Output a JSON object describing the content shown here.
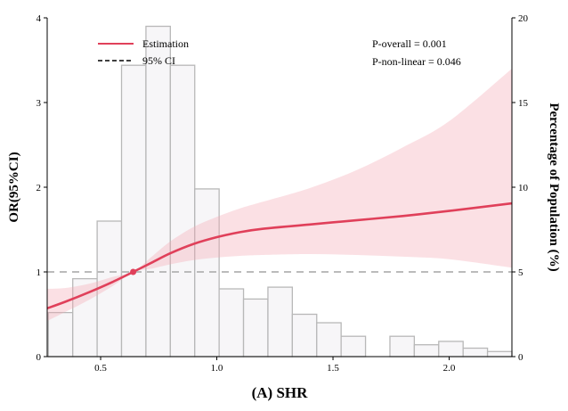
{
  "chart_data": {
    "type": "line",
    "title": "",
    "xlabel": "(A) SHR",
    "ylabel_left": "OR(95%CI)",
    "ylabel_right": "Percentage of Population (%)",
    "xlim": [
      0.27,
      2.27
    ],
    "ylim_left": [
      0,
      4
    ],
    "ylim_right": [
      0,
      20
    ],
    "x_ticks": [
      "0.5",
      "1.0",
      "1.5",
      "2.0"
    ],
    "x_tick_values": [
      0.5,
      1.0,
      1.5,
      2.0
    ],
    "y_left_ticks": [
      "0",
      "1",
      "2",
      "3",
      "4"
    ],
    "y_left_tick_values": [
      0,
      1,
      2,
      3,
      4
    ],
    "y_right_ticks": [
      "0",
      "5",
      "10",
      "15",
      "20"
    ],
    "y_right_tick_values": [
      0,
      5,
      10,
      15,
      20
    ],
    "reference_line": 1,
    "reference_point": {
      "x": 0.64,
      "y": 1.0
    },
    "legend": {
      "placement": "top-left",
      "entries": [
        {
          "label": "Estimation",
          "style": "solid",
          "color": "#e0405a"
        },
        {
          "label": "95% CI",
          "style": "dashed",
          "color": "#000000"
        }
      ]
    },
    "annotations": [
      "P-overall = 0.001",
      "P-non-linear = 0.046"
    ],
    "histogram": {
      "axis": "right",
      "bin_width": 0.105,
      "bins": [
        {
          "x0": 0.275,
          "value": 2.6
        },
        {
          "x0": 0.38,
          "value": 4.6
        },
        {
          "x0": 0.485,
          "value": 8.0
        },
        {
          "x0": 0.59,
          "value": 17.2
        },
        {
          "x0": 0.695,
          "value": 19.5
        },
        {
          "x0": 0.8,
          "value": 17.2
        },
        {
          "x0": 0.905,
          "value": 9.9
        },
        {
          "x0": 1.01,
          "value": 4.0
        },
        {
          "x0": 1.115,
          "value": 3.4
        },
        {
          "x0": 1.22,
          "value": 4.1
        },
        {
          "x0": 1.325,
          "value": 2.5
        },
        {
          "x0": 1.43,
          "value": 2.0
        },
        {
          "x0": 1.535,
          "value": 1.2
        },
        {
          "x0": 1.745,
          "value": 1.2
        },
        {
          "x0": 1.85,
          "value": 0.7
        },
        {
          "x0": 1.955,
          "value": 0.9
        },
        {
          "x0": 2.06,
          "value": 0.5
        },
        {
          "x0": 2.165,
          "value": 0.3
        }
      ]
    },
    "series": [
      {
        "name": "Estimation",
        "x": [
          0.27,
          0.35,
          0.45,
          0.55,
          0.64,
          0.72,
          0.8,
          0.9,
          1.0,
          1.1,
          1.2,
          1.4,
          1.6,
          1.8,
          2.0,
          2.27
        ],
        "y": [
          0.57,
          0.65,
          0.76,
          0.88,
          1.0,
          1.11,
          1.22,
          1.33,
          1.41,
          1.47,
          1.51,
          1.56,
          1.61,
          1.66,
          1.72,
          1.81
        ],
        "lower": [
          0.42,
          0.53,
          0.67,
          0.83,
          1.0,
          1.04,
          1.09,
          1.14,
          1.17,
          1.19,
          1.2,
          1.21,
          1.2,
          1.18,
          1.15,
          1.05
        ],
        "upper": [
          0.8,
          0.81,
          0.86,
          0.94,
          1.0,
          1.18,
          1.36,
          1.53,
          1.65,
          1.75,
          1.83,
          1.99,
          2.2,
          2.47,
          2.78,
          3.4
        ]
      }
    ]
  }
}
